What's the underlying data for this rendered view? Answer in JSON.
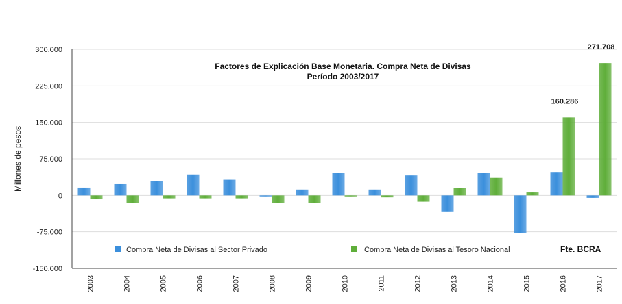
{
  "chart_data": {
    "type": "bar",
    "title": "Factores de Explicación Base Monetaria. Compra Neta de Divisas",
    "subtitle": "Período 2003/2017",
    "ylabel": "Millones de pesos",
    "xlabel": "",
    "ylim": [
      -150000,
      300000
    ],
    "yticks": [
      -150000,
      -75000,
      0,
      75000,
      150000,
      225000,
      300000
    ],
    "ytick_labels": [
      "-150.000",
      "-75.000",
      "0",
      "75.000",
      "150.000",
      "225.000",
      "300.000"
    ],
    "categories": [
      "2003",
      "2004",
      "2005",
      "2006",
      "2007",
      "2008",
      "2009",
      "2010",
      "2011",
      "2012",
      "2013",
      "2014",
      "2015",
      "2016",
      "2017"
    ],
    "series": [
      {
        "name": "Compra Neta de Divisas al Sector Privado",
        "color": "#3b8fdc",
        "values": [
          16000,
          23000,
          30000,
          43000,
          32000,
          -2000,
          12000,
          46000,
          12000,
          41000,
          -33000,
          46000,
          -77000,
          48000,
          -5000
        ]
      },
      {
        "name": "Compra Neta de Divisas al Tesoro Nacional",
        "color": "#5fae3a",
        "values": [
          -8000,
          -15000,
          -6000,
          -6000,
          -6000,
          -15000,
          -15000,
          -2000,
          -4000,
          -13000,
          15000,
          36000,
          6000,
          160286,
          271708
        ]
      }
    ],
    "data_labels": [
      {
        "category": "2016",
        "series": 1,
        "text": "160.286"
      },
      {
        "category": "2017",
        "series": 1,
        "text": "271.708"
      }
    ],
    "grid": true,
    "legend_position": "bottom-inside",
    "source": "Fte. BCRA"
  }
}
